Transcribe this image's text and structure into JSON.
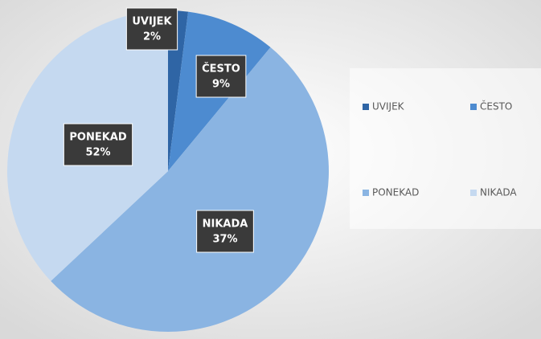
{
  "chart_data": {
    "type": "pie",
    "categories": [
      "UVIJEK",
      "ČESTO",
      "PONEKAD",
      "NIKADA"
    ],
    "values": [
      2,
      9,
      52,
      37
    ],
    "value_labels": [
      "2%",
      "9%",
      "52%",
      "37%"
    ],
    "colors": [
      "#2f65a5",
      "#4d8bd0",
      "#8ab4e2",
      "#c5d9f0"
    ],
    "legend": "right"
  }
}
